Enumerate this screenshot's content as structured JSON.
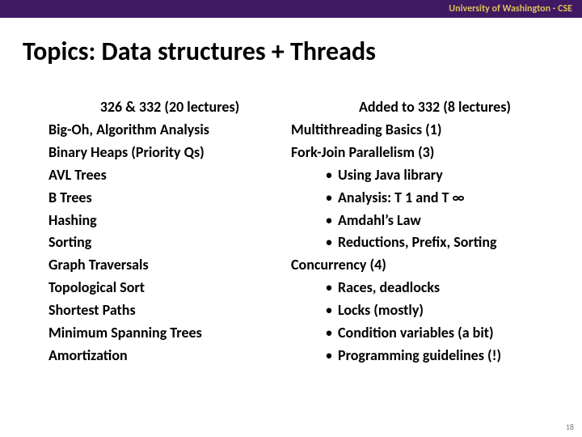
{
  "banner": {
    "text": "University of Washington - CSE",
    "background_color": "#3f1a63",
    "text_color": "#dcc05a"
  },
  "title": "Topics: Data structures + Threads",
  "left": {
    "heading": "326 & 332 (20 lectures)",
    "items": [
      "Big-Oh, Algorithm Analysis",
      "Binary Heaps (Priority Qs)",
      "AVL Trees",
      "B Trees",
      "Hashing",
      "Sorting",
      "Graph Traversals",
      "Topological Sort",
      "Shortest Paths",
      "Minimum Spanning Trees",
      "Amortization"
    ]
  },
  "right": {
    "heading": "Added to 332 (8 lectures)",
    "sections": [
      {
        "label": "Multithreading Basics (1)",
        "subs": []
      },
      {
        "label": "Fork-Join Parallelism (3)",
        "subs": [
          "Using Java library",
          "Analysis: T 1 and T ∞",
          "Amdahl’s Law",
          "Reductions, Prefix, Sorting"
        ]
      },
      {
        "label": "Concurrency (4)",
        "subs": [
          "Races, deadlocks",
          "Locks (mostly)",
          "Condition variables (a bit)",
          "Programming guidelines (!)"
        ]
      }
    ]
  },
  "page_number": "18",
  "typography": {
    "title_fontsize": 32,
    "body_fontsize": 18,
    "banner_fontsize": 12,
    "font_family": "Calibri"
  },
  "colors": {
    "background": "#ffffff",
    "text": "#000000",
    "banner_bg": "#3f1a63",
    "banner_text": "#dcc05a",
    "page_number": "#7a7a7a"
  }
}
